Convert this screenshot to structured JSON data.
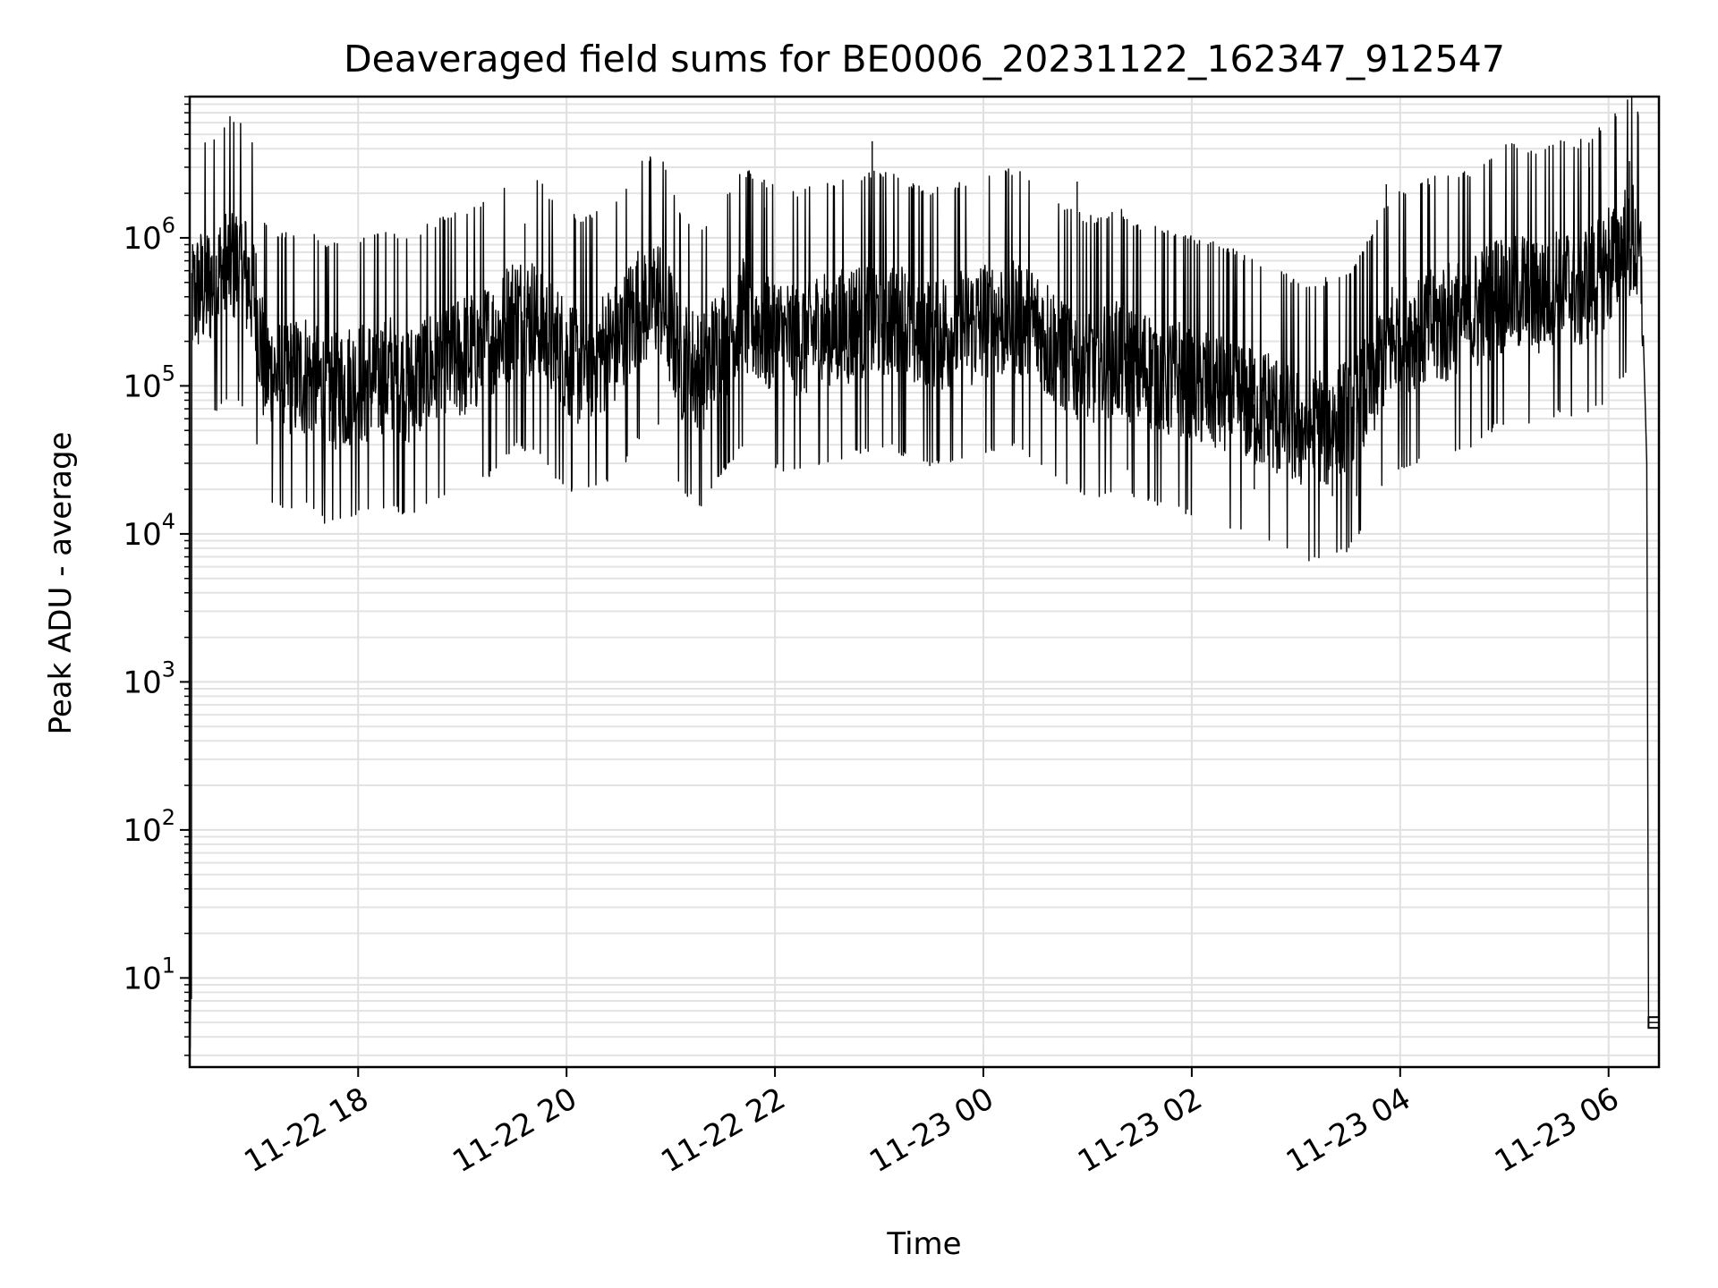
{
  "chart_data": {
    "type": "line",
    "title": "Deaveraged field sums for BE0006_20231122_162347_912547",
    "xlabel": "Time",
    "ylabel": "Peak ADU - average",
    "yscale": "log",
    "ylim": [
      2.5,
      9000000
    ],
    "xlim": [
      "2023-11-22T16:23",
      "2023-11-23T06:29"
    ],
    "grid": true,
    "x_ticks": [
      "11-22 18",
      "11-22 20",
      "11-22 22",
      "11-23 00",
      "11-23 02",
      "11-23 04",
      "11-23 06"
    ],
    "y_ticks": [
      {
        "base": "10",
        "exp": "1",
        "value": 10
      },
      {
        "base": "10",
        "exp": "2",
        "value": 100
      },
      {
        "base": "10",
        "exp": "3",
        "value": 1000
      },
      {
        "base": "10",
        "exp": "4",
        "value": 10000
      },
      {
        "base": "10",
        "exp": "5",
        "value": 100000
      },
      {
        "base": "10",
        "exp": "6",
        "value": 1000000
      }
    ],
    "series": [
      {
        "color": "#000000",
        "points": [
          [
            "2023-11-22T16:24",
            400000
          ],
          [
            "2023-11-22T16:36",
            500000
          ],
          [
            "2023-11-22T16:48",
            700000
          ],
          [
            "2023-11-22T17:00",
            450000
          ],
          [
            "2023-11-22T17:06",
            130000
          ],
          [
            "2023-11-22T17:18",
            110000
          ],
          [
            "2023-11-22T17:30",
            120000
          ],
          [
            "2023-11-22T17:42",
            90000
          ],
          [
            "2023-11-22T17:54",
            100000
          ],
          [
            "2023-11-22T18:06",
            110000
          ],
          [
            "2023-11-22T18:18",
            120000
          ],
          [
            "2023-11-22T18:30",
            100000
          ],
          [
            "2023-11-22T18:42",
            130000
          ],
          [
            "2023-11-22T18:54",
            150000
          ],
          [
            "2023-11-22T19:06",
            170000
          ],
          [
            "2023-11-22T19:18",
            200000
          ],
          [
            "2023-11-22T19:30",
            300000
          ],
          [
            "2023-11-22T19:42",
            280000
          ],
          [
            "2023-11-22T19:54",
            180000
          ],
          [
            "2023-11-22T20:06",
            140000
          ],
          [
            "2023-11-22T20:18",
            160000
          ],
          [
            "2023-11-22T20:30",
            200000
          ],
          [
            "2023-11-22T20:42",
            350000
          ],
          [
            "2023-11-22T20:54",
            400000
          ],
          [
            "2023-11-22T21:06",
            150000
          ],
          [
            "2023-11-22T21:18",
            120000
          ],
          [
            "2023-11-22T21:30",
            200000
          ],
          [
            "2023-11-22T21:42",
            300000
          ],
          [
            "2023-11-22T21:54",
            250000
          ],
          [
            "2023-11-22T22:06",
            200000
          ],
          [
            "2023-11-22T22:18",
            220000
          ],
          [
            "2023-11-22T22:30",
            240000
          ],
          [
            "2023-11-22T22:42",
            260000
          ],
          [
            "2023-11-22T22:54",
            280000
          ],
          [
            "2023-11-22T23:06",
            300000
          ],
          [
            "2023-11-22T23:18",
            250000
          ],
          [
            "2023-11-22T23:30",
            220000
          ],
          [
            "2023-11-22T23:42",
            240000
          ],
          [
            "2023-11-22T23:54",
            260000
          ],
          [
            "2023-11-23T00:06",
            280000
          ],
          [
            "2023-11-23T00:18",
            300000
          ],
          [
            "2023-11-23T00:30",
            250000
          ],
          [
            "2023-11-23T00:42",
            180000
          ],
          [
            "2023-11-23T00:54",
            150000
          ],
          [
            "2023-11-23T01:06",
            140000
          ],
          [
            "2023-11-23T01:18",
            160000
          ],
          [
            "2023-11-23T01:30",
            130000
          ],
          [
            "2023-11-23T01:42",
            120000
          ],
          [
            "2023-11-23T01:54",
            110000
          ],
          [
            "2023-11-23T02:06",
            100000
          ],
          [
            "2023-11-23T02:18",
            90000
          ],
          [
            "2023-11-23T02:30",
            80000
          ],
          [
            "2023-11-23T02:42",
            70000
          ],
          [
            "2023-11-23T02:54",
            60000
          ],
          [
            "2023-11-23T03:06",
            50000
          ],
          [
            "2023-11-23T03:18",
            55000
          ],
          [
            "2023-11-23T03:30",
            60000
          ],
          [
            "2023-11-23T03:42",
            100000
          ],
          [
            "2023-11-23T03:54",
            200000
          ],
          [
            "2023-11-23T04:06",
            230000
          ],
          [
            "2023-11-23T04:18",
            260000
          ],
          [
            "2023-11-23T04:30",
            280000
          ],
          [
            "2023-11-23T04:42",
            300000
          ],
          [
            "2023-11-23T04:54",
            400000
          ],
          [
            "2023-11-23T05:06",
            450000
          ],
          [
            "2023-11-23T05:18",
            400000
          ],
          [
            "2023-11-23T05:30",
            500000
          ],
          [
            "2023-11-23T05:42",
            450000
          ],
          [
            "2023-11-23T05:54",
            550000
          ],
          [
            "2023-11-23T06:06",
            800000
          ],
          [
            "2023-11-23T06:14",
            1000000
          ],
          [
            "2023-11-23T06:19",
            600000
          ],
          [
            "2023-11-23T06:22",
            30000
          ],
          [
            "2023-11-23T06:23",
            5
          ],
          [
            "2023-11-23T06:29",
            5
          ]
        ],
        "spikes": [
          [
            "2023-11-22T16:55",
            1300000
          ],
          [
            "2023-11-22T17:23",
            1000000
          ],
          [
            "2023-11-22T18:36",
            1050000
          ],
          [
            "2023-11-22T19:36",
            1250000
          ],
          [
            "2023-11-22T21:54",
            1600000
          ],
          [
            "2023-11-22T22:56",
            4500000
          ],
          [
            "2023-11-23T00:54",
            2400000
          ],
          [
            "2023-11-23T03:52",
            2300000
          ],
          [
            "2023-11-23T05:49",
            3000000
          ],
          [
            "2023-11-23T06:12",
            3300000
          ],
          [
            "2023-11-22T17:45",
            42000
          ],
          [
            "2023-11-22T18:05",
            42000
          ],
          [
            "2023-11-23T01:23",
            27000
          ],
          [
            "2023-11-23T02:36",
            20000
          ],
          [
            "2023-11-23T03:21",
            18000
          ],
          [
            "2023-11-23T03:35",
            18000
          ]
        ]
      }
    ]
  }
}
